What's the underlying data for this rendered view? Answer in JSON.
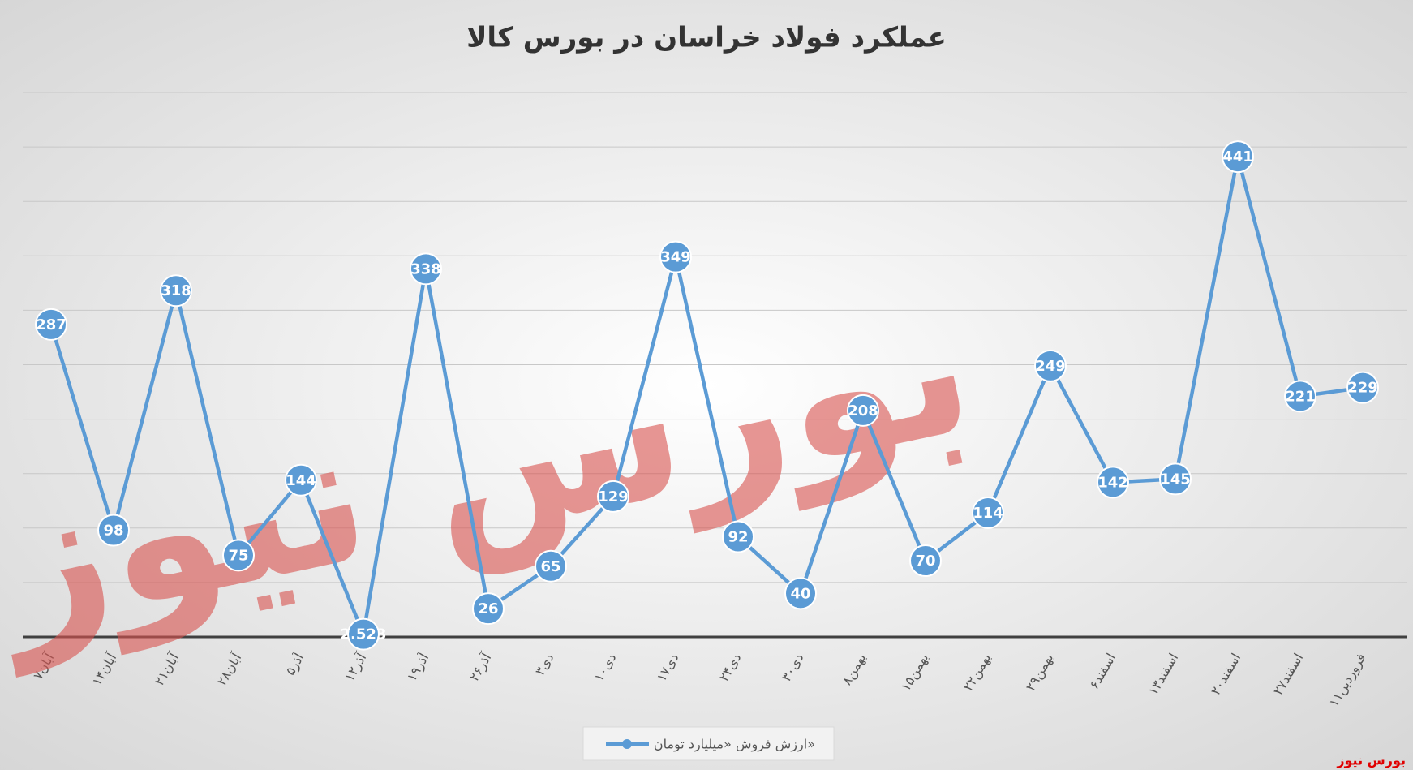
{
  "chart_data": {
    "type": "line",
    "title": "عملکرد فولاد خراسان در بورس کالا",
    "watermark": "بورس نیوز",
    "source": "بورس نیوز",
    "categories": [
      "۷آبان",
      "۱۴آبان",
      "۲۱آبان",
      "۲۸آبان",
      "۵آذر",
      "۱۲آذر",
      "۱۹آذر",
      "۲۶آذر",
      "۳دی",
      "۱۰دی",
      "۱۷دی",
      "۲۴دی",
      "۳۰دی",
      "۸بهمن",
      "۱۵بهمن",
      "۲۲بهمن",
      "۲۹بهمن",
      "۶اسفند",
      "۱۳اسفند",
      "۲۰اسفند",
      "۲۷اسفند",
      "۱۱فروردین"
    ],
    "series": [
      {
        "name": "ارزش فروش «میلیارد تومان»",
        "color": "#5b9bd5",
        "values": [
          287,
          98,
          318,
          75,
          144,
          2.523,
          338,
          26,
          65,
          129,
          349,
          92,
          40,
          208,
          70,
          114,
          249,
          142,
          145,
          441,
          221,
          229
        ]
      }
    ],
    "ylim": [
      0,
      500
    ],
    "yticks": [
      0,
      50,
      100,
      150,
      200,
      250,
      300,
      350,
      400,
      450,
      500
    ],
    "grid": true,
    "legend": "bottom"
  }
}
